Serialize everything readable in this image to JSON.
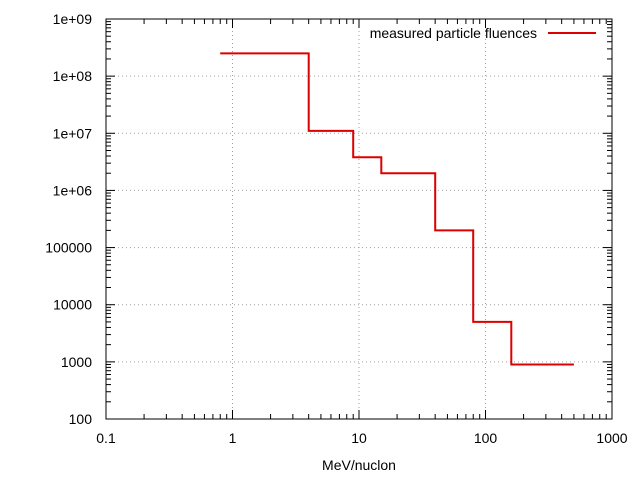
{
  "chart_data": {
    "type": "line",
    "style": "step",
    "title": "",
    "xlabel": "MeV/nuclon",
    "ylabel": "",
    "x_scale": "log",
    "y_scale": "log",
    "xlim": [
      0.1,
      1000
    ],
    "ylim": [
      100,
      1000000000
    ],
    "grid": true,
    "legend_position": "top-right",
    "x_tick_labels": [
      "0.1",
      "1",
      "10",
      "100",
      "1000"
    ],
    "y_tick_labels": [
      "100",
      "1000",
      "10000",
      "100000",
      "1e+06",
      "1e+07",
      "1e+08",
      "1e+09"
    ],
    "series": [
      {
        "name": "measured particle fluences",
        "color": "#dd0000",
        "x": [
          0.8,
          4,
          9,
          15,
          40,
          80,
          160,
          500
        ],
        "y": [
          250000000,
          11000000,
          3800000,
          2000000,
          200000,
          5000,
          900,
          900
        ]
      }
    ]
  }
}
